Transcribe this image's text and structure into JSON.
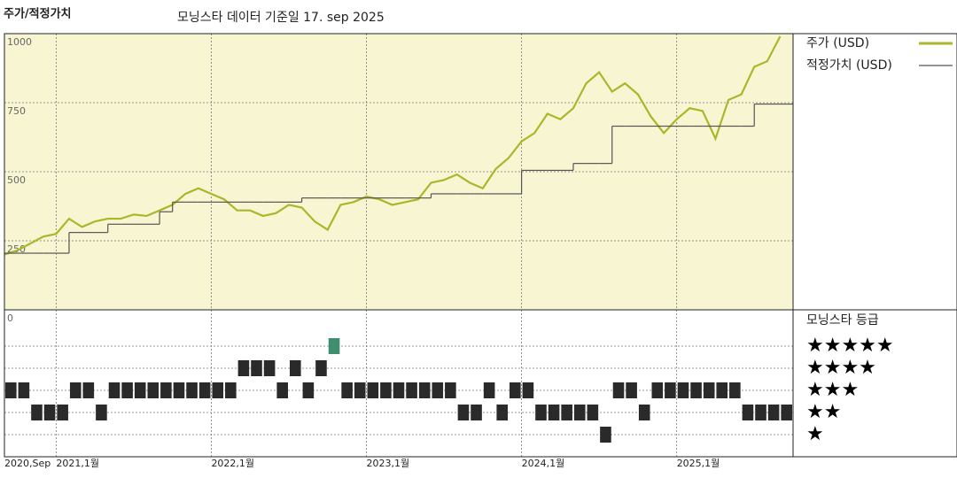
{
  "chart_data": [
    {
      "type": "line",
      "header": "주가/적정가치",
      "title": "모닝스타 데이터 기준일 17. sep 2025",
      "x": [
        "2020-09",
        "2020-10",
        "2020-11",
        "2020-12",
        "2021-01",
        "2021-02",
        "2021-03",
        "2021-04",
        "2021-05",
        "2021-06",
        "2021-07",
        "2021-08",
        "2021-09",
        "2021-10",
        "2021-11",
        "2021-12",
        "2022-01",
        "2022-02",
        "2022-03",
        "2022-04",
        "2022-05",
        "2022-06",
        "2022-07",
        "2022-08",
        "2022-09",
        "2022-10",
        "2022-11",
        "2022-12",
        "2023-01",
        "2023-02",
        "2023-03",
        "2023-04",
        "2023-05",
        "2023-06",
        "2023-07",
        "2023-08",
        "2023-09",
        "2023-10",
        "2023-11",
        "2023-12",
        "2024-01",
        "2024-02",
        "2024-03",
        "2024-04",
        "2024-05",
        "2024-06",
        "2024-07",
        "2024-08",
        "2024-09",
        "2024-10",
        "2024-11",
        "2024-12",
        "2025-01",
        "2025-02",
        "2025-03",
        "2025-04",
        "2025-05",
        "2025-06",
        "2025-07",
        "2025-08",
        "2025-09"
      ],
      "series": [
        {
          "name": "주가 (USD)",
          "color": "#a8b82a",
          "style": "line",
          "values": [
            200,
            215,
            240,
            265,
            275,
            330,
            300,
            320,
            330,
            330,
            345,
            340,
            360,
            380,
            420,
            440,
            420,
            400,
            360,
            360,
            340,
            350,
            380,
            370,
            320,
            290,
            380,
            390,
            410,
            400,
            380,
            390,
            400,
            460,
            470,
            490,
            460,
            440,
            510,
            550,
            610,
            640,
            710,
            690,
            730,
            820,
            860,
            790,
            820,
            780,
            700,
            640,
            690,
            730,
            720,
            620,
            760,
            780,
            880,
            900,
            990
          ]
        },
        {
          "name": "적정가치 (USD)",
          "color": "#555555",
          "style": "step",
          "values": [
            205,
            205,
            205,
            205,
            205,
            280,
            280,
            280,
            310,
            310,
            310,
            310,
            355,
            390,
            390,
            390,
            390,
            390,
            390,
            390,
            390,
            390,
            390,
            405,
            405,
            405,
            405,
            405,
            405,
            405,
            405,
            405,
            405,
            420,
            420,
            420,
            420,
            420,
            420,
            420,
            505,
            505,
            505,
            505,
            530,
            530,
            530,
            665,
            665,
            665,
            665,
            665,
            665,
            665,
            665,
            665,
            665,
            665,
            745,
            745,
            745
          ]
        }
      ],
      "xlim": [
        "2020-09",
        "2025-10"
      ],
      "xticks": [
        {
          "value": "2020-09",
          "label": "2020,Sep"
        },
        {
          "value": "2021-01",
          "label": "2021,1월"
        },
        {
          "value": "2022-01",
          "label": "2022,1월"
        },
        {
          "value": "2023-01",
          "label": "2023,1월"
        },
        {
          "value": "2024-01",
          "label": "2024,1월"
        },
        {
          "value": "2025-01",
          "label": "2025,1월"
        }
      ],
      "ylim": [
        0,
        1000
      ],
      "yticks": [
        0,
        250,
        500,
        750,
        1000
      ],
      "background": "#f8f5d2",
      "grid": true
    },
    {
      "type": "strip",
      "title": "모닝스타 등급",
      "x": [
        "2020-09",
        "2020-10",
        "2020-11",
        "2020-12",
        "2021-01",
        "2021-02",
        "2021-03",
        "2021-04",
        "2021-05",
        "2021-06",
        "2021-07",
        "2021-08",
        "2021-09",
        "2021-10",
        "2021-11",
        "2021-12",
        "2022-01",
        "2022-02",
        "2022-03",
        "2022-04",
        "2022-05",
        "2022-06",
        "2022-07",
        "2022-08",
        "2022-09",
        "2022-10",
        "2022-11",
        "2022-12",
        "2023-01",
        "2023-02",
        "2023-03",
        "2023-04",
        "2023-05",
        "2023-06",
        "2023-07",
        "2023-08",
        "2023-09",
        "2023-10",
        "2023-11",
        "2023-12",
        "2024-01",
        "2024-02",
        "2024-03",
        "2024-04",
        "2024-05",
        "2024-06",
        "2024-07",
        "2024-08",
        "2024-09",
        "2024-10",
        "2024-11",
        "2024-12",
        "2025-01",
        "2025-02",
        "2025-03",
        "2025-04",
        "2025-05",
        "2025-06",
        "2025-07",
        "2025-08",
        "2025-09"
      ],
      "values": [
        3,
        3,
        2,
        2,
        2,
        3,
        3,
        2,
        3,
        3,
        3,
        3,
        3,
        3,
        3,
        3,
        3,
        3,
        4,
        4,
        4,
        3,
        4,
        3,
        4,
        5,
        3,
        3,
        3,
        3,
        3,
        3,
        3,
        3,
        3,
        2,
        2,
        3,
        2,
        3,
        3,
        2,
        2,
        2,
        2,
        2,
        1,
        3,
        3,
        2,
        3,
        3,
        3,
        3,
        3,
        3,
        3,
        2,
        2,
        2,
        2
      ],
      "yticks": [
        {
          "value": 5,
          "label": "★★★★★"
        },
        {
          "value": 4,
          "label": "★★★★"
        },
        {
          "value": 3,
          "label": "★★★"
        },
        {
          "value": 2,
          "label": "★★"
        },
        {
          "value": 1,
          "label": "★"
        }
      ],
      "colors": [
        "#2a2a2a",
        "#2a2a2a",
        "#2a2a2a",
        "#2a2a2a",
        "#3f8f6f"
      ]
    }
  ]
}
